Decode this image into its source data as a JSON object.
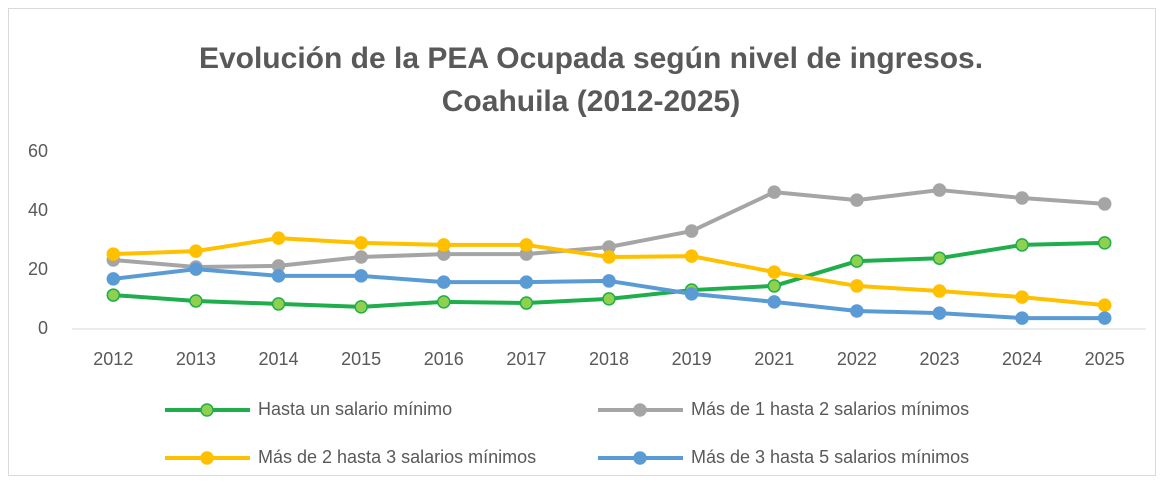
{
  "chart_data": {
    "type": "line",
    "title": [
      "Evolución de la PEA Ocupada según nivel de ingresos.",
      "Coahuila (2012-2025)"
    ],
    "categories": [
      "2012",
      "2013",
      "2014",
      "2015",
      "2016",
      "2017",
      "2018",
      "2019",
      "2021",
      "2022",
      "2023",
      "2024",
      "2025"
    ],
    "series": [
      {
        "name": "Hasta un salario mínimo",
        "color": "#1fae4b",
        "marker_fill": "#8fd14f",
        "values": [
          11.5,
          9.5,
          8.5,
          7.5,
          9.2,
          8.8,
          10.2,
          13.2,
          14.6,
          23,
          24,
          28.5,
          29.2
        ]
      },
      {
        "name": "Más de 1 hasta 2 salarios mínimos",
        "color": "#a5a5a5",
        "marker_fill": "#a5a5a5",
        "values": [
          23.4,
          21,
          21.4,
          24.4,
          25.4,
          25.4,
          27.8,
          33.2,
          46.4,
          43.7,
          47.1,
          44.4,
          42.4
        ]
      },
      {
        "name": "Más de 2 hasta 3 salarios mínimos",
        "color": "#ffc000",
        "marker_fill": "#ffc000",
        "values": [
          25.4,
          26.4,
          30.8,
          29.2,
          28.5,
          28.5,
          24.4,
          24.7,
          19.3,
          14.6,
          12.9,
          10.8,
          8.1
        ]
      },
      {
        "name": "Más de 3 hasta 5 salarios mínimos",
        "color": "#5b9bd5",
        "marker_fill": "#5b9bd5",
        "values": [
          17,
          20.3,
          18,
          18,
          15.9,
          15.9,
          16.3,
          11.9,
          9.2,
          6.1,
          5.4,
          3.7,
          3.7
        ]
      }
    ],
    "ylim": [
      0,
      60
    ],
    "yticks": [
      0,
      20,
      40,
      60
    ],
    "grid": false,
    "legend": "bottom"
  }
}
